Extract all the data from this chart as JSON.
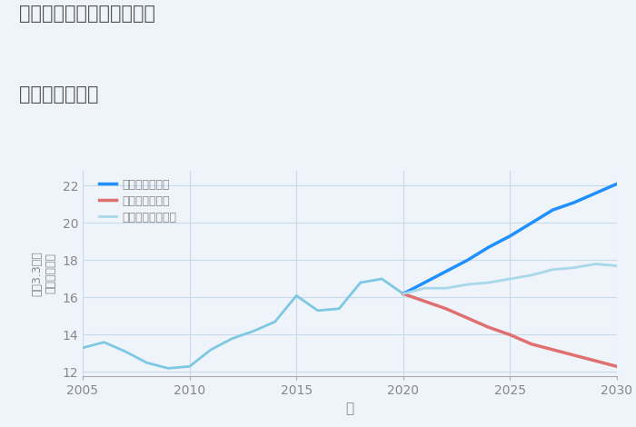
{
  "title_line1": "三重県津市久居西鷹跡町の",
  "title_line2": "土地の価格推移",
  "xlabel": "年",
  "ylabel_top": "単価（万円）",
  "ylabel_bottom": "坪（3.3㎡）",
  "xlim": [
    2005,
    2030
  ],
  "ylim": [
    11.8,
    22.8
  ],
  "yticks": [
    12,
    14,
    16,
    18,
    20,
    22
  ],
  "xticks": [
    2005,
    2010,
    2015,
    2020,
    2025,
    2030
  ],
  "background_color": "#eef4fa",
  "plot_bg_color": "#eef4fa",
  "historical_x": [
    2005,
    2006,
    2007,
    2008,
    2009,
    2010,
    2011,
    2012,
    2013,
    2014,
    2015,
    2016,
    2017,
    2018,
    2019,
    2020
  ],
  "historical_y": [
    13.3,
    13.6,
    13.1,
    12.5,
    12.2,
    12.3,
    13.2,
    13.8,
    14.2,
    14.7,
    16.1,
    15.3,
    15.4,
    16.8,
    17.0,
    16.2
  ],
  "good_x": [
    2020,
    2021,
    2022,
    2023,
    2024,
    2025,
    2026,
    2027,
    2028,
    2029,
    2030
  ],
  "good_y": [
    16.2,
    16.8,
    17.4,
    18.0,
    18.7,
    19.3,
    20.0,
    20.7,
    21.1,
    21.6,
    22.1
  ],
  "bad_x": [
    2020,
    2021,
    2022,
    2023,
    2024,
    2025,
    2026,
    2027,
    2028,
    2029,
    2030
  ],
  "bad_y": [
    16.2,
    15.8,
    15.4,
    14.9,
    14.4,
    14.0,
    13.5,
    13.2,
    12.9,
    12.6,
    12.3
  ],
  "normal_x": [
    2020,
    2021,
    2022,
    2023,
    2024,
    2025,
    2026,
    2027,
    2028,
    2029,
    2030
  ],
  "normal_y": [
    16.2,
    16.5,
    16.5,
    16.7,
    16.8,
    17.0,
    17.2,
    17.5,
    17.6,
    17.8,
    17.7
  ],
  "hist_color": "#7ec8e3",
  "good_color": "#1e90ff",
  "bad_color": "#e07070",
  "normal_color": "#a8d8ea",
  "legend_labels": [
    "グッドシナリオ",
    "バッドシナリオ",
    "ノーマルシナリオ"
  ],
  "legend_colors": [
    "#1e90ff",
    "#e07070",
    "#a8d8ea"
  ],
  "title_color": "#555555",
  "axis_color": "#888888",
  "grid_color": "#c8daea"
}
